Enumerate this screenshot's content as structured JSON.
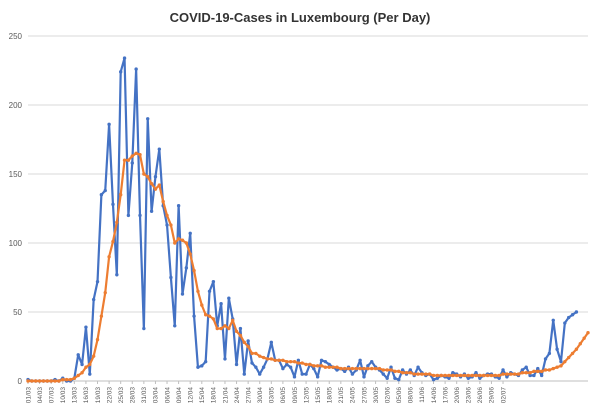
{
  "chart_data": {
    "type": "line",
    "title": "COVID-19-Cases in Luxembourg (Per Day)",
    "xlabel": "",
    "ylabel": "",
    "ylim": [
      0,
      250
    ],
    "yticks": [
      0,
      50,
      100,
      150,
      200,
      250
    ],
    "grid": "horizontal",
    "legend": "none",
    "x_tick_labels": [
      "01/03",
      "04/03",
      "07/03",
      "10/03",
      "13/03",
      "16/03",
      "19/03",
      "22/03",
      "25/03",
      "28/03",
      "31/03",
      "03/04",
      "06/04",
      "09/04",
      "12/04",
      "15/04",
      "18/04",
      "21/04",
      "24/04",
      "27/04",
      "30/04",
      "03/05",
      "06/05",
      "09/05",
      "12/05",
      "15/05",
      "18/05",
      "21/05",
      "24/05",
      "27/05",
      "30/05",
      "02/06",
      "05/06",
      "08/06",
      "11/06",
      "14/06",
      "17/06",
      "20/06",
      "23/06",
      "26/06",
      "29/06",
      "02/07"
    ],
    "series": [
      {
        "color": "#4472C4",
        "values": [
          1,
          0,
          0,
          0,
          0,
          0,
          0,
          1,
          0,
          2,
          0,
          0,
          2,
          19,
          12,
          39,
          5,
          59,
          72,
          135,
          138,
          186,
          128,
          77,
          224,
          234,
          120,
          158,
          226,
          120,
          38,
          190,
          123,
          148,
          168,
          127,
          113,
          75,
          40,
          127,
          63,
          82,
          107,
          47,
          10,
          11,
          14,
          65,
          72,
          40,
          56,
          16,
          60,
          45,
          12,
          38,
          5,
          29,
          13,
          10,
          5,
          10,
          16,
          28,
          15,
          15,
          9,
          12,
          10,
          3,
          15,
          5,
          5,
          12,
          9,
          3,
          15,
          14,
          12,
          10,
          8,
          9,
          7,
          10,
          5,
          8,
          15,
          3,
          11,
          14,
          10,
          8,
          5,
          2,
          10,
          2,
          1,
          8,
          5,
          8,
          4,
          10,
          6,
          4,
          5,
          1,
          2,
          4,
          3,
          2,
          6,
          5,
          3,
          5,
          2,
          3,
          6,
          2,
          4,
          5,
          5,
          3,
          2,
          8,
          3,
          6,
          5,
          4,
          8,
          10,
          4,
          4,
          9,
          4,
          16,
          20,
          44,
          23,
          14,
          42,
          46,
          48,
          50
        ]
      },
      {
        "color": "#ED7D31",
        "values": [
          0,
          0,
          0,
          0,
          0,
          0,
          0,
          0,
          0,
          1,
          1,
          1,
          2,
          4,
          6,
          10,
          12,
          18,
          30,
          47,
          64,
          90,
          101,
          115,
          135,
          160,
          160,
          163,
          165,
          164,
          150,
          148,
          143,
          139,
          142,
          130,
          120,
          113,
          100,
          103,
          102,
          100,
          92,
          80,
          65,
          55,
          48,
          47,
          45,
          38,
          38,
          40,
          38,
          44,
          36,
          33,
          28,
          25,
          20,
          20,
          18,
          17,
          16,
          16,
          15,
          15,
          15,
          14,
          14,
          14,
          13,
          13,
          12,
          12,
          11,
          11,
          11,
          10,
          10,
          10,
          10,
          9,
          9,
          9,
          9,
          9,
          9,
          9,
          9,
          9,
          9,
          9,
          8,
          8,
          8,
          7,
          7,
          6,
          6,
          6,
          5,
          5,
          5,
          5,
          5,
          4,
          4,
          4,
          4,
          4,
          4,
          4,
          4,
          4,
          4,
          4,
          4,
          4,
          4,
          4,
          4,
          4,
          4,
          5,
          5,
          5,
          5,
          5,
          6,
          6,
          6,
          7,
          7,
          7,
          8,
          8,
          9,
          10,
          11,
          14,
          17,
          20,
          23,
          27,
          31,
          35
        ]
      }
    ]
  }
}
